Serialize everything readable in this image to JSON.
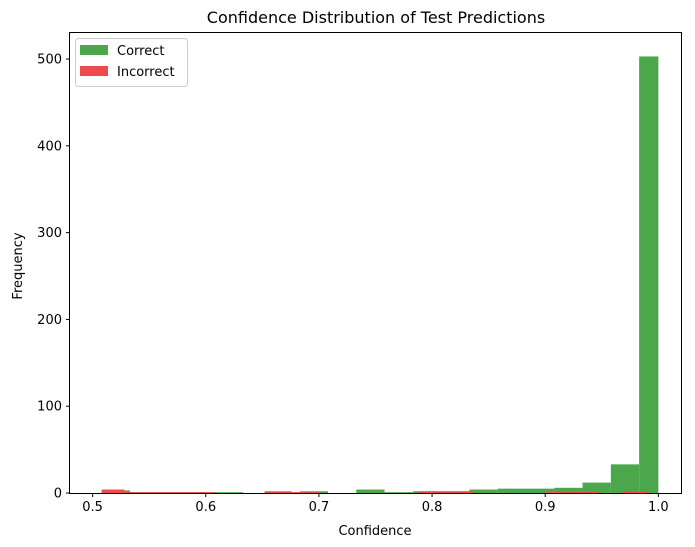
{
  "chart_data": {
    "type": "bar",
    "title": "Confidence Distribution of Test Predictions",
    "xlabel": "Confidence",
    "ylabel": "Frequency",
    "xlim": [
      0.48,
      1.02
    ],
    "ylim": [
      0,
      530
    ],
    "xticks": [
      0.5,
      0.6,
      0.7,
      0.8,
      0.9,
      1.0
    ],
    "xtick_labels": [
      "0.5",
      "0.6",
      "0.7",
      "0.8",
      "0.9",
      "1.0"
    ],
    "yticks": [
      0,
      100,
      200,
      300,
      400,
      500
    ],
    "ytick_labels": [
      "0",
      "100",
      "200",
      "300",
      "400",
      "500"
    ],
    "grid": false,
    "legend_position": "top-left",
    "series": [
      {
        "name": "Correct",
        "color": "#4ca64c",
        "bins": [
          [
            0.508,
            0.533,
            3
          ],
          [
            0.533,
            0.558,
            1
          ],
          [
            0.558,
            0.583,
            1
          ],
          [
            0.583,
            0.608,
            1
          ],
          [
            0.608,
            0.633,
            1
          ],
          [
            0.683,
            0.708,
            2
          ],
          [
            0.733,
            0.758,
            4
          ],
          [
            0.758,
            0.783,
            1
          ],
          [
            0.783,
            0.808,
            2
          ],
          [
            0.808,
            0.833,
            2
          ],
          [
            0.833,
            0.858,
            4
          ],
          [
            0.858,
            0.883,
            5
          ],
          [
            0.883,
            0.908,
            5
          ],
          [
            0.908,
            0.933,
            6
          ],
          [
            0.933,
            0.958,
            12
          ],
          [
            0.958,
            0.983,
            33
          ],
          [
            0.983,
            1.0,
            503
          ]
        ]
      },
      {
        "name": "Incorrect",
        "color": "#f04a4a",
        "bins": [
          [
            0.508,
            0.528,
            4
          ],
          [
            0.528,
            0.548,
            1
          ],
          [
            0.548,
            0.568,
            1
          ],
          [
            0.568,
            0.588,
            1
          ],
          [
            0.588,
            0.608,
            1
          ],
          [
            0.652,
            0.676,
            2
          ],
          [
            0.676,
            0.7,
            1
          ],
          [
            0.788,
            0.812,
            2
          ],
          [
            0.812,
            0.836,
            2
          ],
          [
            0.9,
            0.924,
            1
          ],
          [
            0.924,
            0.948,
            1
          ],
          [
            0.968,
            0.992,
            2
          ]
        ]
      }
    ]
  }
}
